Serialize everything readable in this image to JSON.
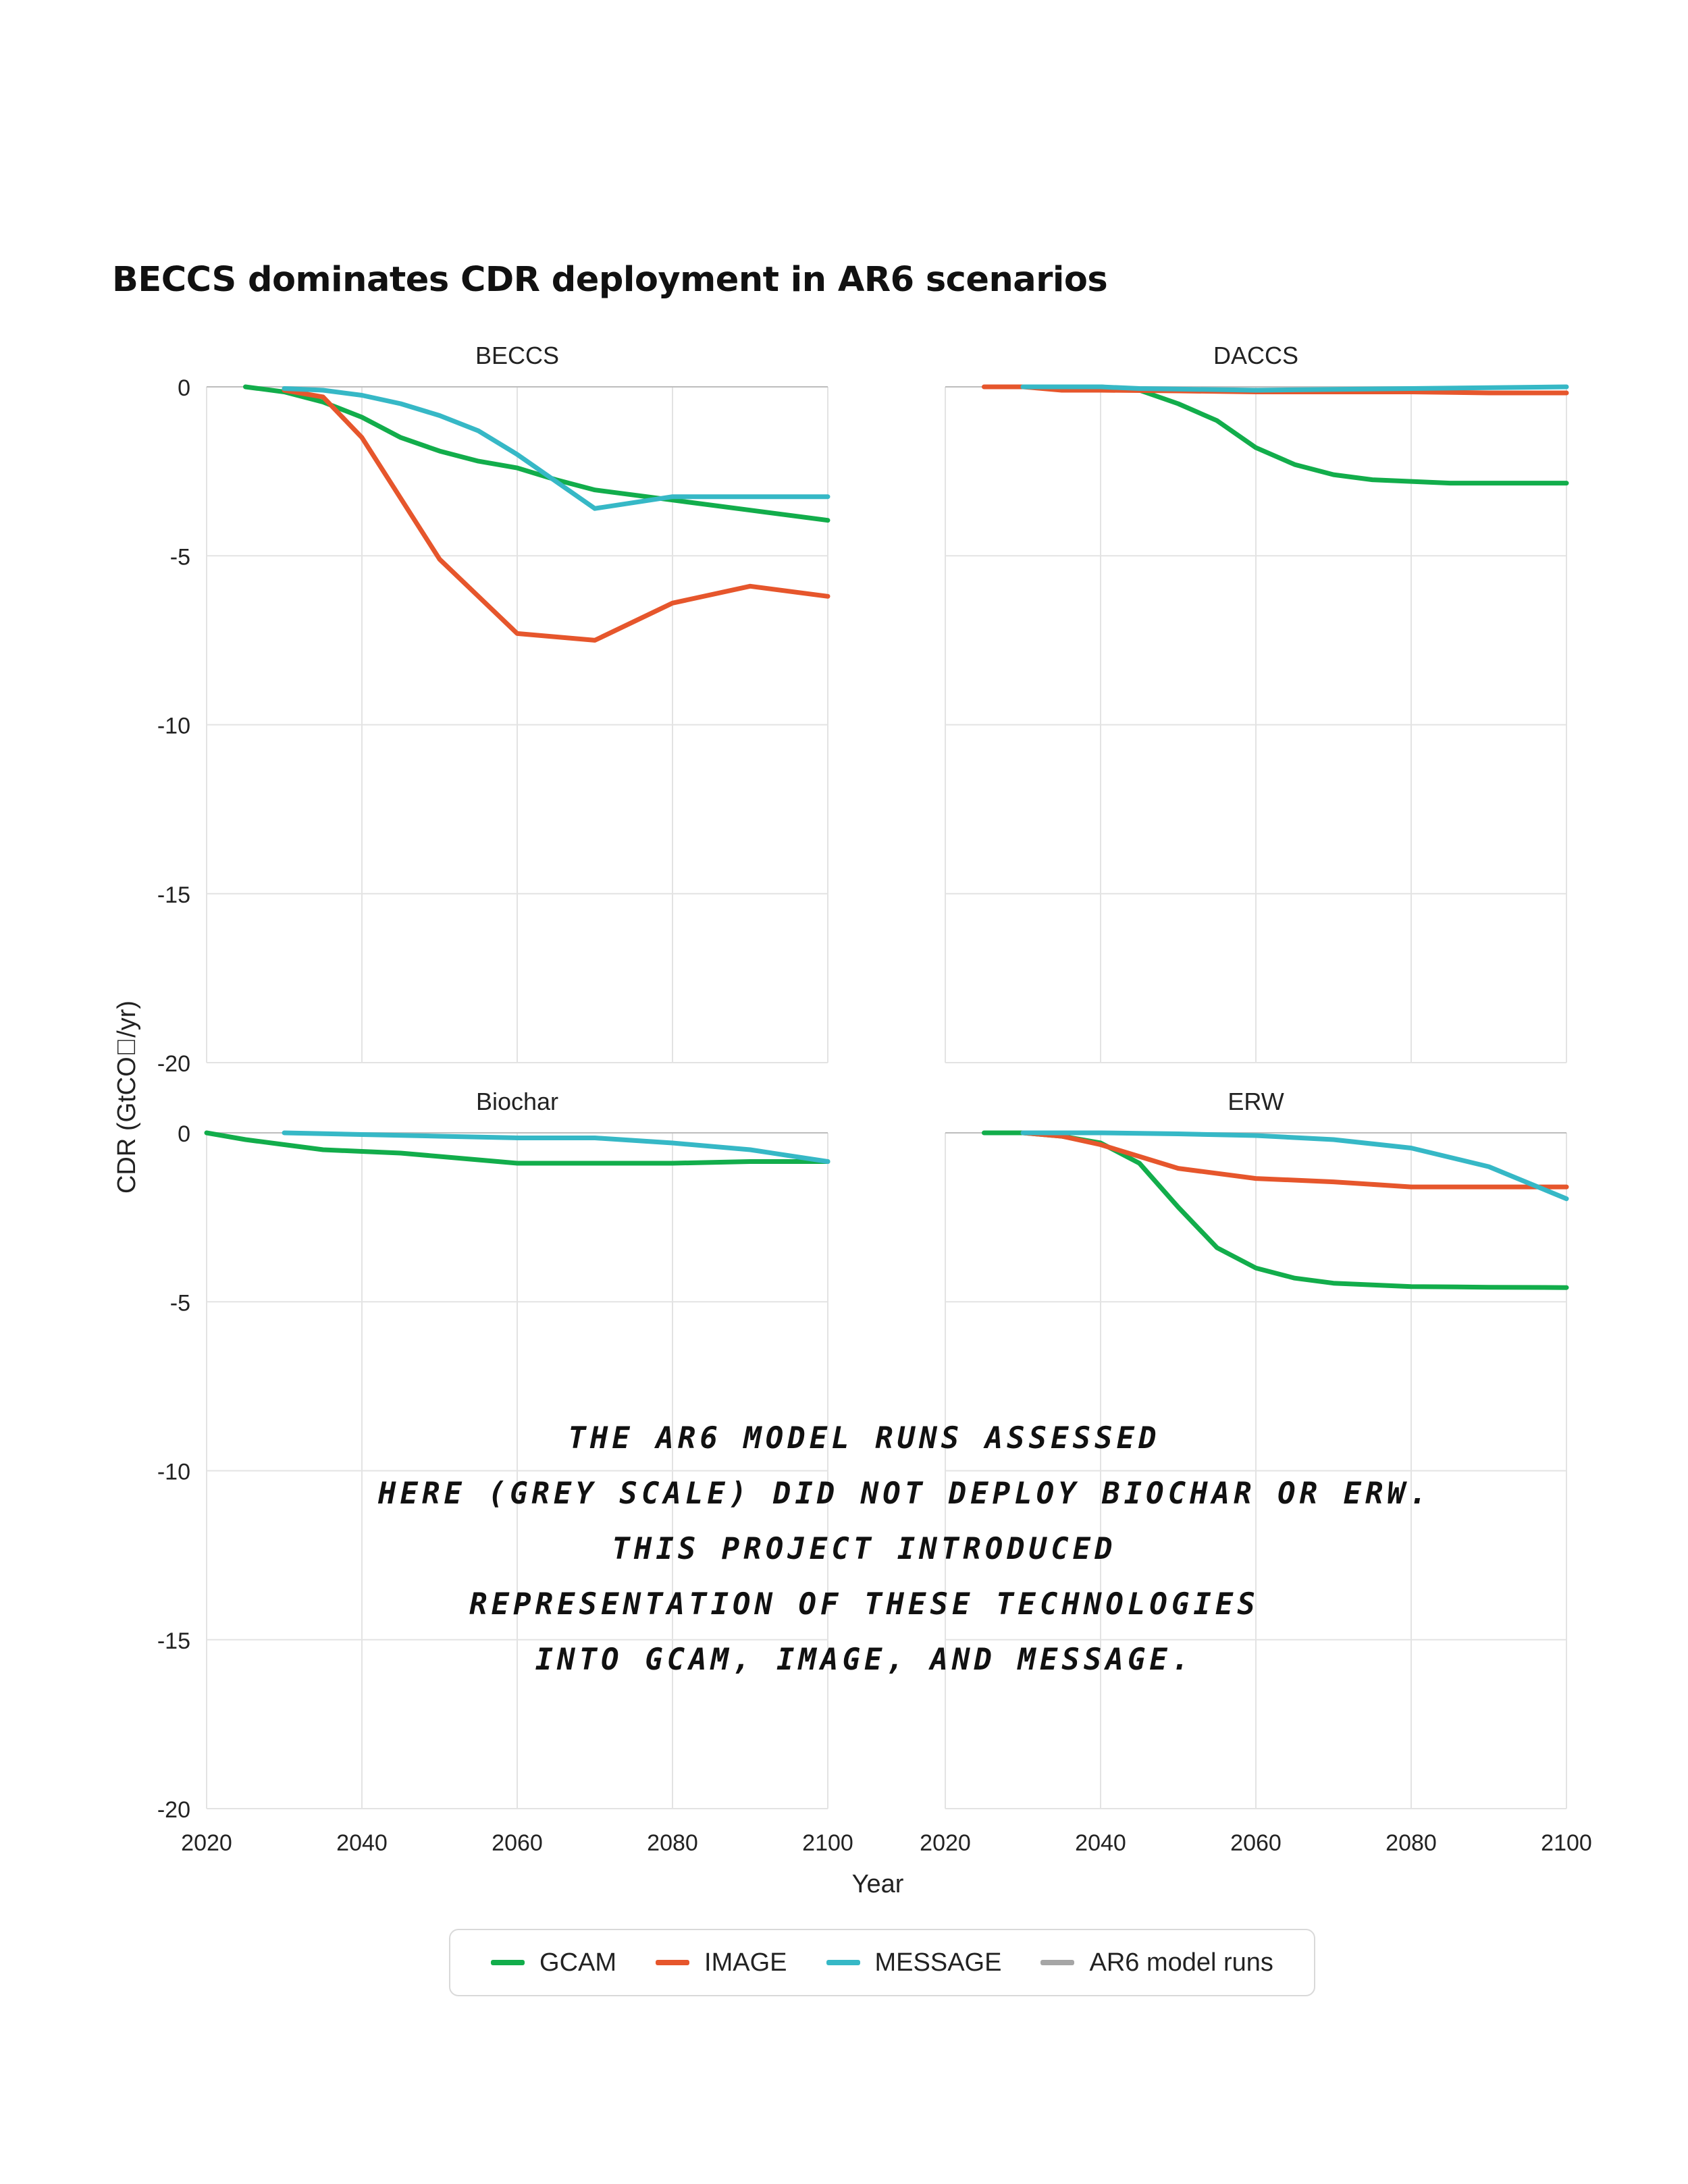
{
  "title": "BECCS dominates CDR deployment in AR6 scenarios",
  "colors": {
    "GCAM": "#12ad4b",
    "IMAGE": "#e6562c",
    "MESSAGE": "#36b8c6",
    "AR6 model runs": "#a6a6a6"
  },
  "legend": [
    {
      "label": "GCAM",
      "color": "#12ad4b"
    },
    {
      "label": "IMAGE",
      "color": "#e6562c"
    },
    {
      "label": "MESSAGE",
      "color": "#36b8c6"
    },
    {
      "label": "AR6 model runs",
      "color": "#a6a6a6"
    }
  ],
  "annotation": [
    "THE AR6 MODEL RUNS ASSESSED",
    "HERE (GREY SCALE) DID NOT DEPLOY BIOCHAR OR ERW.",
    "THIS PROJECT INTRODUCED",
    "REPRESENTATION OF THESE TECHNOLOGIES",
    "INTO GCAM, IMAGE, AND MESSAGE."
  ],
  "chart_data": {
    "type": "line",
    "xlabel": "Year",
    "ylabel": "CDR (GtCO\u0000/yr)",
    "xlim": [
      2020,
      2100
    ],
    "ylim": [
      -20,
      0
    ],
    "xticks": [
      2020,
      2040,
      2060,
      2080,
      2100
    ],
    "yticks": [
      0,
      -5,
      -10,
      -15,
      -20
    ],
    "grid": true,
    "legend_position": "bottom-center",
    "panels": [
      {
        "name": "BECCS",
        "series": [
          {
            "name": "GCAM",
            "x": [
              2025,
              2030,
              2035,
              2040,
              2045,
              2050,
              2055,
              2060,
              2065,
              2070,
              2080,
              2090,
              2100
            ],
            "y": [
              0,
              -0.15,
              -0.45,
              -0.9,
              -1.5,
              -1.9,
              -2.2,
              -2.4,
              -2.75,
              -3.05,
              -3.35,
              -3.65,
              -3.95
            ]
          },
          {
            "name": "IMAGE",
            "x": [
              2030,
              2035,
              2040,
              2050,
              2060,
              2070,
              2080,
              2090,
              2100
            ],
            "y": [
              -0.1,
              -0.3,
              -1.5,
              -5.1,
              -7.3,
              -7.5,
              -6.4,
              -5.9,
              -6.2
            ]
          },
          {
            "name": "MESSAGE",
            "x": [
              2030,
              2035,
              2040,
              2045,
              2050,
              2055,
              2060,
              2070,
              2080,
              2090,
              2100
            ],
            "y": [
              -0.05,
              -0.1,
              -0.25,
              -0.5,
              -0.85,
              -1.3,
              -2.0,
              -3.6,
              -3.25,
              -3.25,
              -3.25
            ]
          }
        ]
      },
      {
        "name": "DACCS",
        "series": [
          {
            "name": "GCAM",
            "x": [
              2030,
              2040,
              2045,
              2050,
              2055,
              2060,
              2065,
              2070,
              2075,
              2080,
              2085,
              2090,
              2100
            ],
            "y": [
              0,
              0,
              -0.1,
              -0.5,
              -1.0,
              -1.8,
              -2.3,
              -2.6,
              -2.75,
              -2.8,
              -2.85,
              -2.85,
              -2.85
            ]
          },
          {
            "name": "IMAGE",
            "x": [
              2025,
              2030,
              2035,
              2040,
              2050,
              2060,
              2070,
              2080,
              2090,
              2100
            ],
            "y": [
              0,
              0,
              -0.1,
              -0.1,
              -0.12,
              -0.15,
              -0.15,
              -0.15,
              -0.18,
              -0.18
            ]
          },
          {
            "name": "MESSAGE",
            "x": [
              2030,
              2040,
              2045,
              2060,
              2080,
              2100
            ],
            "y": [
              0,
              0,
              -0.05,
              -0.1,
              -0.05,
              0
            ]
          }
        ]
      },
      {
        "name": "Biochar",
        "series": [
          {
            "name": "GCAM",
            "x": [
              2020,
              2025,
              2030,
              2035,
              2040,
              2045,
              2050,
              2055,
              2060,
              2070,
              2080,
              2090,
              2100
            ],
            "y": [
              0,
              -0.2,
              -0.35,
              -0.5,
              -0.55,
              -0.6,
              -0.7,
              -0.8,
              -0.9,
              -0.9,
              -0.9,
              -0.85,
              -0.85
            ]
          },
          {
            "name": "MESSAGE",
            "x": [
              2030,
              2040,
              2050,
              2060,
              2070,
              2080,
              2090,
              2100
            ],
            "y": [
              0,
              -0.05,
              -0.1,
              -0.15,
              -0.15,
              -0.3,
              -0.5,
              -0.85
            ]
          }
        ]
      },
      {
        "name": "ERW",
        "series": [
          {
            "name": "GCAM",
            "x": [
              2025,
              2030,
              2035,
              2040,
              2045,
              2050,
              2055,
              2060,
              2065,
              2070,
              2075,
              2080,
              2090,
              2100
            ],
            "y": [
              0,
              0,
              -0.1,
              -0.3,
              -0.9,
              -2.2,
              -3.4,
              -4.0,
              -4.3,
              -4.45,
              -4.5,
              -4.55,
              -4.57,
              -4.58
            ]
          },
          {
            "name": "IMAGE",
            "x": [
              2030,
              2035,
              2040,
              2045,
              2050,
              2060,
              2070,
              2080,
              2090,
              2100
            ],
            "y": [
              0,
              -0.1,
              -0.35,
              -0.7,
              -1.05,
              -1.35,
              -1.45,
              -1.6,
              -1.6,
              -1.6
            ]
          },
          {
            "name": "MESSAGE",
            "x": [
              2030,
              2040,
              2050,
              2060,
              2070,
              2080,
              2090,
              2100
            ],
            "y": [
              0,
              0,
              -0.03,
              -0.08,
              -0.2,
              -0.45,
              -1.0,
              -1.95
            ]
          }
        ]
      }
    ]
  }
}
